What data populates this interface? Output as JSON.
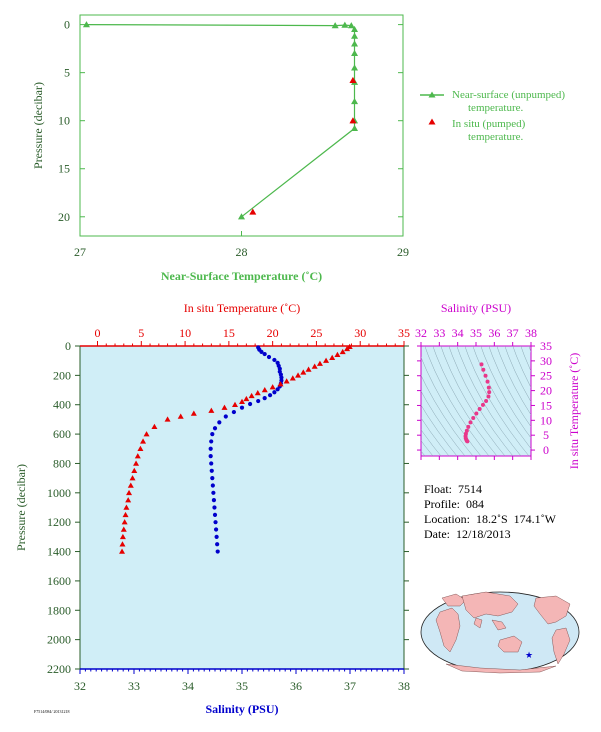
{
  "colors": {
    "near_surface": "#4db84d",
    "in_situ": "#e60000",
    "salinity": "#0000cc",
    "salinity_axis": "#cc00cc",
    "panel_bg": "#d0eef7",
    "axis_dark": "#2a5c2a",
    "land": "#f4b6b6",
    "ocean": "#cfe8f5"
  },
  "chart_data": [
    {
      "id": "near-surface",
      "type": "line",
      "xlabel": "Near-Surface Temperature (˚C)",
      "ylabel": "Pressure (decibar)",
      "xlim": [
        27,
        29
      ],
      "ylim": [
        22,
        -1
      ],
      "xticks": [
        27,
        28,
        29
      ],
      "yticks": [
        0,
        5,
        10,
        15,
        20
      ],
      "series": [
        {
          "name": "Near-surface (unpumped) temperature.",
          "marker": "triangle",
          "points": [
            [
              27.04,
              0
            ],
            [
              28.58,
              0.1
            ],
            [
              28.64,
              0.05
            ],
            [
              28.68,
              0.1
            ],
            [
              28.7,
              0.5
            ],
            [
              28.7,
              1.2
            ],
            [
              28.7,
              2.0
            ],
            [
              28.7,
              3.0
            ],
            [
              28.7,
              4.5
            ],
            [
              28.7,
              6.0
            ],
            [
              28.7,
              8.0
            ],
            [
              28.7,
              10.0
            ],
            [
              28.7,
              10.8
            ],
            [
              28.0,
              20.0
            ]
          ]
        },
        {
          "name": "In situ (pumped) temperature.",
          "marker": "triangle",
          "points": [
            [
              28.69,
              5.8
            ],
            [
              28.69,
              10.0
            ],
            [
              28.07,
              19.5
            ]
          ]
        }
      ],
      "legend": "right"
    },
    {
      "id": "profile",
      "type": "scatter",
      "ylabel": "Pressure (decibar)",
      "ylim": [
        2200,
        0
      ],
      "yticks": [
        0,
        200,
        400,
        600,
        800,
        1000,
        1200,
        1400,
        1600,
        1800,
        2000,
        2200
      ],
      "top_axis": {
        "label": "In situ Temperature (˚C)",
        "lim": [
          -2,
          35
        ],
        "ticks": [
          0,
          5,
          10,
          15,
          20,
          25,
          30,
          35
        ]
      },
      "bottom_axis": {
        "label": "Salinity (PSU)",
        "lim": [
          32,
          38
        ],
        "ticks": [
          32,
          33,
          34,
          35,
          36,
          37,
          38
        ]
      },
      "series": [
        {
          "name": "In situ Temperature",
          "axis": "top",
          "marker": "triangle",
          "points": [
            [
              28.8,
              5
            ],
            [
              28.5,
              20
            ],
            [
              28.0,
              40
            ],
            [
              27.4,
              60
            ],
            [
              26.8,
              80
            ],
            [
              26.1,
              100
            ],
            [
              25.4,
              120
            ],
            [
              24.8,
              140
            ],
            [
              24.1,
              160
            ],
            [
              23.5,
              180
            ],
            [
              22.9,
              200
            ],
            [
              22.3,
              220
            ],
            [
              21.6,
              240
            ],
            [
              20.9,
              260
            ],
            [
              20.0,
              280
            ],
            [
              19.1,
              300
            ],
            [
              18.3,
              320
            ],
            [
              17.6,
              340
            ],
            [
              17.0,
              360
            ],
            [
              16.5,
              380
            ],
            [
              15.7,
              400
            ],
            [
              14.5,
              420
            ],
            [
              13.0,
              440
            ],
            [
              11.0,
              460
            ],
            [
              9.5,
              480
            ],
            [
              8.0,
              500
            ],
            [
              6.5,
              550
            ],
            [
              5.6,
              600
            ],
            [
              5.2,
              650
            ],
            [
              4.9,
              700
            ],
            [
              4.6,
              750
            ],
            [
              4.4,
              800
            ],
            [
              4.2,
              850
            ],
            [
              4.0,
              900
            ],
            [
              3.8,
              950
            ],
            [
              3.6,
              1000
            ],
            [
              3.5,
              1050
            ],
            [
              3.3,
              1100
            ],
            [
              3.2,
              1150
            ],
            [
              3.1,
              1200
            ],
            [
              3.0,
              1250
            ],
            [
              2.9,
              1300
            ],
            [
              2.85,
              1350
            ],
            [
              2.8,
              1400
            ]
          ]
        },
        {
          "name": "Salinity",
          "axis": "bottom",
          "marker": "dot",
          "points": [
            [
              35.3,
              10
            ],
            [
              35.32,
              25
            ],
            [
              35.36,
              40
            ],
            [
              35.42,
              55
            ],
            [
              35.5,
              75
            ],
            [
              35.6,
              95
            ],
            [
              35.66,
              115
            ],
            [
              35.68,
              135
            ],
            [
              35.7,
              155
            ],
            [
              35.7,
              175
            ],
            [
              35.72,
              195
            ],
            [
              35.73,
              215
            ],
            [
              35.73,
              235
            ],
            [
              35.72,
              255
            ],
            [
              35.7,
              275
            ],
            [
              35.66,
              295
            ],
            [
              35.6,
              315
            ],
            [
              35.52,
              335
            ],
            [
              35.42,
              355
            ],
            [
              35.3,
              375
            ],
            [
              35.15,
              395
            ],
            [
              35.0,
              420
            ],
            [
              34.85,
              450
            ],
            [
              34.7,
              480
            ],
            [
              34.58,
              520
            ],
            [
              34.5,
              560
            ],
            [
              34.45,
              600
            ],
            [
              34.43,
              650
            ],
            [
              34.42,
              700
            ],
            [
              34.42,
              750
            ],
            [
              34.43,
              800
            ],
            [
              34.44,
              850
            ],
            [
              34.45,
              900
            ],
            [
              34.46,
              950
            ],
            [
              34.47,
              1000
            ],
            [
              34.48,
              1050
            ],
            [
              34.49,
              1100
            ],
            [
              34.5,
              1150
            ],
            [
              34.51,
              1200
            ],
            [
              34.52,
              1250
            ],
            [
              34.53,
              1300
            ],
            [
              34.54,
              1350
            ],
            [
              34.55,
              1400
            ]
          ]
        }
      ]
    },
    {
      "id": "ts-diagram",
      "type": "scatter",
      "top_axis": {
        "label": "Salinity (PSU)",
        "lim": [
          32,
          38
        ],
        "ticks": [
          32,
          33,
          34,
          35,
          36,
          37,
          38
        ]
      },
      "right_axis": {
        "label": "In situ Temperature (˚C)",
        "lim": [
          -2,
          35
        ],
        "ticks": [
          0,
          5,
          10,
          15,
          20,
          25,
          30,
          35
        ]
      },
      "grid": "density contours",
      "series": [
        {
          "name": "T-S",
          "marker": "dot",
          "points": [
            [
              35.3,
              28.8
            ],
            [
              35.4,
              27.0
            ],
            [
              35.52,
              25.0
            ],
            [
              35.63,
              23.0
            ],
            [
              35.7,
              21.0
            ],
            [
              35.72,
              19.5
            ],
            [
              35.68,
              18.0
            ],
            [
              35.55,
              16.5
            ],
            [
              35.38,
              15.2
            ],
            [
              35.2,
              13.8
            ],
            [
              35.02,
              12.3
            ],
            [
              34.85,
              10.8
            ],
            [
              34.7,
              9.3
            ],
            [
              34.58,
              7.8
            ],
            [
              34.5,
              6.5
            ],
            [
              34.45,
              5.5
            ],
            [
              34.43,
              4.7
            ],
            [
              34.44,
              4.0
            ],
            [
              34.47,
              3.5
            ],
            [
              34.5,
              3.1
            ],
            [
              34.53,
              2.9
            ]
          ]
        }
      ]
    }
  ],
  "info": {
    "float": "Float:  7514",
    "profile": "Profile:  084",
    "location": "Location:  18.2˚S  174.1˚W",
    "date": "Date:  12/18/2013"
  },
  "map": {
    "float_marker": "star",
    "float_position": {
      "lat": -18.2,
      "lon": -174.1
    }
  },
  "footer": {
    "code": "F7514/084/ 20131218"
  }
}
